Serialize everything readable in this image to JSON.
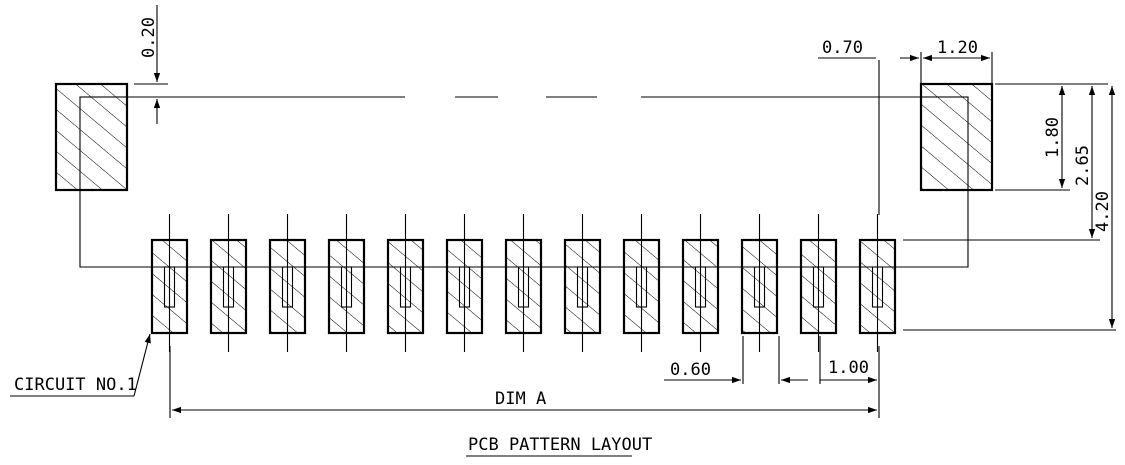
{
  "drawing": {
    "caption": "PCB PATTERN LAYOUT",
    "pad_count": 13,
    "dimensions": {
      "tab_offset": "0.20",
      "edge_gap": "0.70",
      "tab_width": "1.20",
      "tab_height": "1.80",
      "tab_to_pad_top": "2.65",
      "overall_depth": "4.20",
      "pad_width": "0.60",
      "pitch": "1.00",
      "span": "DIM A"
    },
    "callouts": {
      "first_circuit": "CIRCUIT NO.1"
    }
  }
}
